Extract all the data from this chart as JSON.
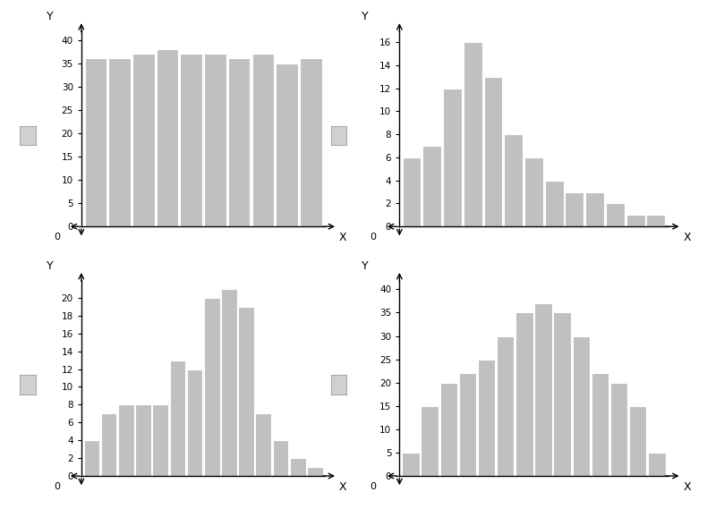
{
  "chart1": {
    "values": [
      36,
      36,
      37,
      38,
      37,
      37,
      36,
      37,
      35,
      36
    ],
    "yticks": [
      0,
      5,
      10,
      15,
      20,
      25,
      30,
      35,
      40
    ],
    "ylim": [
      0,
      42
    ]
  },
  "chart2": {
    "values": [
      6,
      7,
      12,
      16,
      13,
      8,
      6,
      4,
      3,
      3,
      2,
      1,
      1
    ],
    "yticks": [
      0,
      2,
      4,
      6,
      8,
      10,
      12,
      14,
      16
    ],
    "ylim": [
      0,
      17
    ]
  },
  "chart3": {
    "values": [
      4,
      7,
      8,
      8,
      8,
      13,
      12,
      20,
      21,
      19,
      7,
      4,
      2,
      1
    ],
    "yticks": [
      0,
      2,
      4,
      6,
      8,
      10,
      12,
      14,
      16,
      18,
      20
    ],
    "ylim": [
      0,
      22
    ]
  },
  "chart4": {
    "values": [
      5,
      15,
      20,
      22,
      25,
      30,
      35,
      37,
      35,
      30,
      22,
      20,
      15,
      5
    ],
    "yticks": [
      0,
      5,
      10,
      15,
      20,
      25,
      30,
      35,
      40
    ],
    "ylim": [
      0,
      42
    ]
  },
  "bar_color": "#c0c0c0",
  "bar_edge_color": "#ffffff",
  "bar_linewidth": 0.8,
  "checkbox_color": "#d0d0d0",
  "checkbox_edge_color": "#aaaaaa",
  "axis_color": "#000000",
  "background_color": "#ffffff",
  "tick_labelsize": 7.5
}
